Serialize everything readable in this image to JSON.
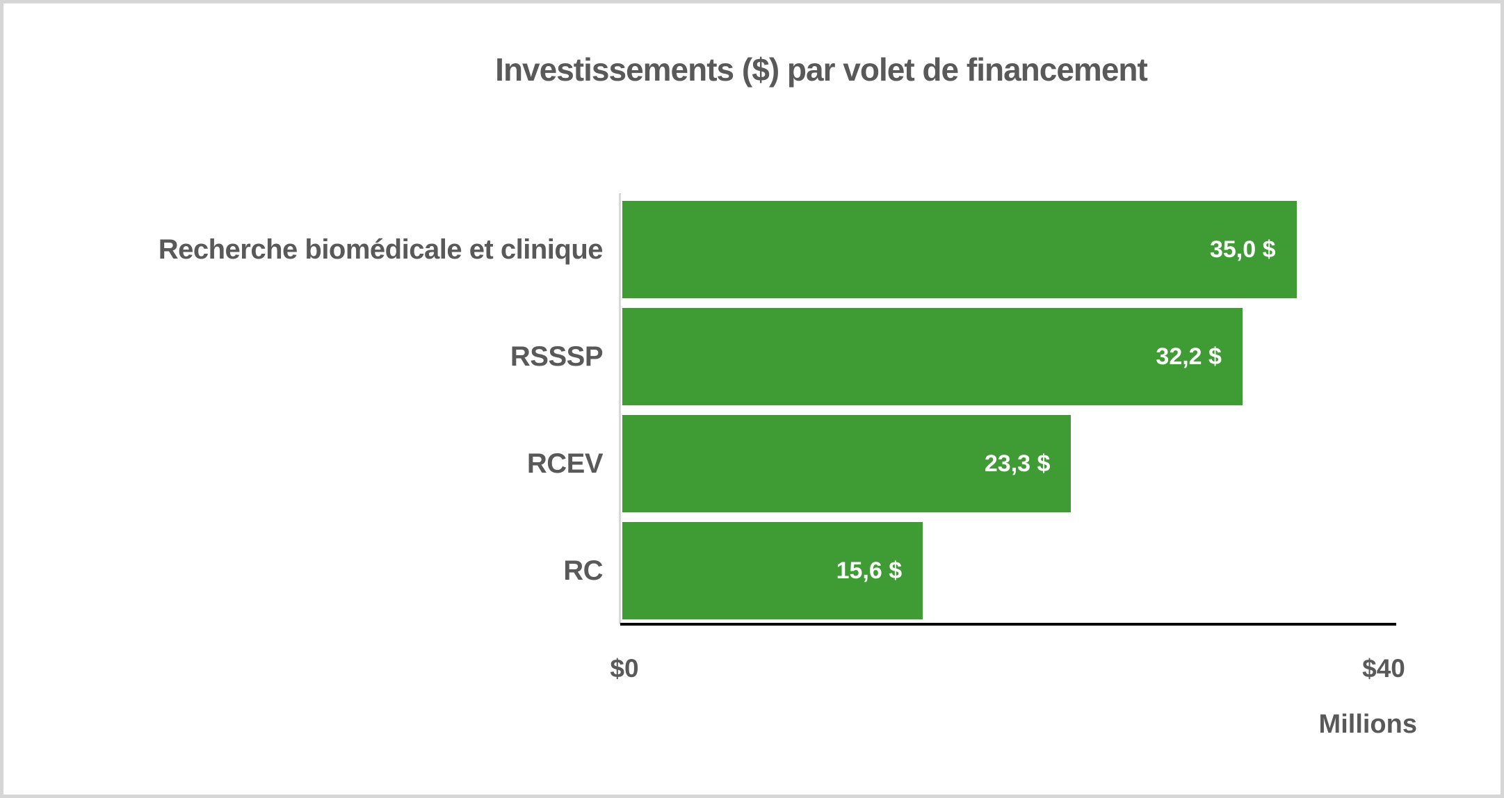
{
  "chart_data": {
    "type": "bar",
    "orientation": "horizontal",
    "title": "Investissements ($) par volet de financement",
    "categories": [
      "Recherche biomédicale et clinique",
      "RSSSP",
      "RCEV",
      "RC"
    ],
    "values": [
      35.0,
      32.2,
      23.3,
      15.6
    ],
    "value_labels": [
      "35,0 $",
      "32,2 $",
      "23,3 $",
      "15,6 $"
    ],
    "xlim": [
      0,
      40
    ],
    "x_ticks": [
      "$0",
      "$40"
    ],
    "axis_unit_label": "Millions",
    "grid": false,
    "legend": "none",
    "bar_color": "#3f9c35",
    "value_label_color": "#ffffff",
    "text_color": "#595959",
    "axis_line_color": "#000000",
    "baseline_color": "#d9d9d9"
  }
}
